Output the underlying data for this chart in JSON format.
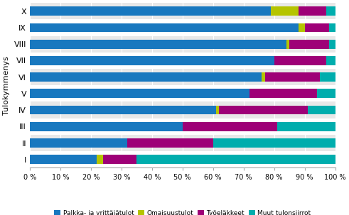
{
  "categories": [
    "I",
    "II",
    "III",
    "IV",
    "V",
    "VI",
    "VII",
    "VIII",
    "IX",
    "X"
  ],
  "palkka": [
    22,
    32,
    50,
    61,
    72,
    76,
    80,
    84,
    88,
    79
  ],
  "omaisuus": [
    2,
    0,
    0,
    1,
    0,
    1,
    0,
    1,
    2,
    9
  ],
  "tyoelakkeet": [
    11,
    28,
    31,
    29,
    22,
    18,
    17,
    13,
    8,
    9
  ],
  "muut": [
    65,
    40,
    19,
    9,
    6,
    5,
    3,
    2,
    2,
    3
  ],
  "colors": {
    "palkka": "#1878bf",
    "omaisuus": "#b5c400",
    "tyoelakkeet": "#9e0077",
    "muut": "#00adad"
  },
  "ylabel": "Tulokymmenys",
  "legend_labels": [
    "Palkka- ja yrittäjätulot",
    "Omaisuustulot",
    "Työeläkkeet",
    "Muut tulonsiirrot"
  ],
  "xticks": [
    0,
    10,
    20,
    30,
    40,
    50,
    60,
    70,
    80,
    90,
    100
  ],
  "xtick_labels": [
    "0 %",
    "10 %",
    "20 %",
    "30 %",
    "40 %",
    "50 %",
    "60 %",
    "70 %",
    "80 %",
    "90 %",
    "100 %"
  ],
  "background_color": "#ffffff",
  "row_band_color": "#e8e8e8"
}
